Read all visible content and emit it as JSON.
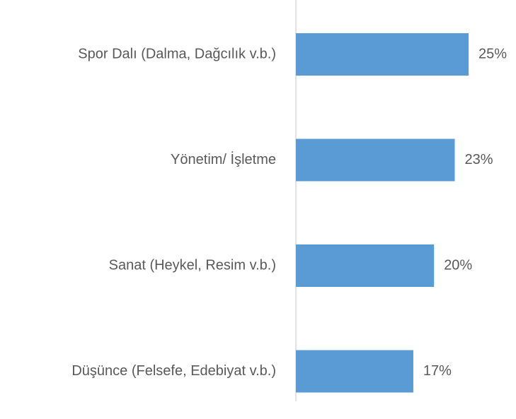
{
  "chart_data": {
    "type": "barh",
    "categories": [
      "Spor Dalı (Dalma, Dağcılık v.b.)",
      "Yönetim/ İşletme",
      "Sanat (Heykel, Resim v.b.)",
      "Düşünce (Felsefe, Edebiyat v.b.)"
    ],
    "values": [
      25,
      23,
      20,
      17
    ],
    "value_labels": [
      "25%",
      "23%",
      "20%",
      "17%"
    ],
    "color": "#5b9bd5",
    "xlim": [
      0,
      25
    ]
  }
}
